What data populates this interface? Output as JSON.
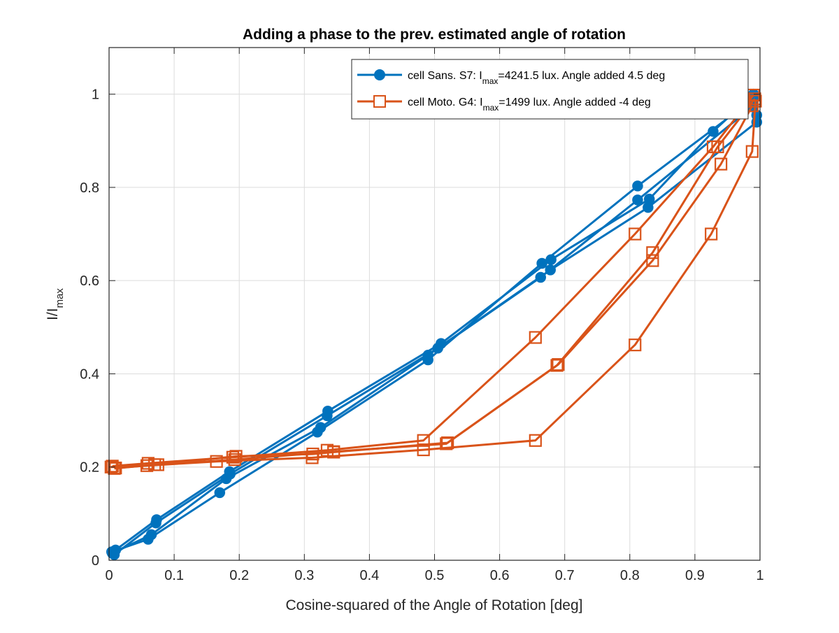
{
  "chart_data": {
    "type": "line",
    "title": "Adding a phase to the prev. estimated angle of rotation",
    "xlabel": "Cosine-squared of the Angle of Rotation [deg]",
    "ylabel": {
      "main": "I/I",
      "sub": "max"
    },
    "xlim": [
      0,
      1
    ],
    "ylim": [
      0,
      1.1
    ],
    "xticks": [
      0,
      0.1,
      0.2,
      0.3,
      0.4,
      0.5,
      0.6,
      0.7,
      0.8,
      0.9,
      1
    ],
    "xtick_labels": [
      "0",
      "0.1",
      "0.2",
      "0.3",
      "0.4",
      "0.5",
      "0.6",
      "0.7",
      "0.8",
      "0.9",
      "1"
    ],
    "yticks": [
      0,
      0.2,
      0.4,
      0.6,
      0.8,
      1
    ],
    "ytick_labels": [
      "0",
      "0.2",
      "0.4",
      "0.6",
      "0.8",
      "1"
    ],
    "grid": true,
    "legend_position": "top-right",
    "series": [
      {
        "legend": {
          "prefix": "cell Sans. S7: I",
          "sub": "max",
          "suffix": "=4241.5 lux. Angle added 4.5 deg"
        },
        "color": "#0072BD",
        "marker": "filled-circle",
        "traces": [
          [
            [
              0.005,
              0.015
            ],
            [
              0.065,
              0.055
            ],
            [
              0.18,
              0.175
            ],
            [
              0.325,
              0.285
            ],
            [
              0.49,
              0.44
            ],
            [
              0.663,
              0.607
            ],
            [
              0.812,
              0.773
            ],
            [
              0.99,
              0.975
            ],
            [
              0.995,
              0.955
            ]
          ],
          [
            [
              0.008,
              0.012
            ],
            [
              0.072,
              0.08
            ],
            [
              0.186,
              0.185
            ],
            [
              0.335,
              0.31
            ],
            [
              0.505,
              0.455
            ],
            [
              0.678,
              0.623
            ],
            [
              0.828,
              0.757
            ],
            [
              0.995,
              0.94
            ]
          ],
          [
            [
              0.004,
              0.018
            ],
            [
              0.06,
              0.045
            ],
            [
              0.17,
              0.145
            ],
            [
              0.32,
              0.275
            ],
            [
              0.49,
              0.43
            ],
            [
              0.665,
              0.637
            ],
            [
              0.812,
              0.803
            ],
            [
              0.99,
              0.99
            ]
          ],
          [
            [
              0.01,
              0.022
            ],
            [
              0.073,
              0.087
            ],
            [
              0.185,
              0.19
            ],
            [
              0.336,
              0.32
            ],
            [
              0.51,
              0.465
            ],
            [
              0.679,
              0.645
            ],
            [
              0.83,
              0.775
            ],
            [
              0.928,
              0.92
            ],
            [
              0.99,
              1.0
            ]
          ]
        ]
      },
      {
        "legend": {
          "prefix": "cell Moto. G4: I",
          "sub": "max",
          "suffix": "=1499 lux. Angle added -4 deg"
        },
        "color": "#D95319",
        "marker": "open-square",
        "traces": [
          [
            [
              0.003,
              0.2
            ],
            [
              0.058,
              0.203
            ],
            [
              0.165,
              0.212
            ],
            [
              0.312,
              0.22
            ],
            [
              0.483,
              0.237
            ],
            [
              0.655,
              0.257
            ],
            [
              0.808,
              0.462
            ],
            [
              0.925,
              0.7
            ],
            [
              0.988,
              0.877
            ],
            [
              0.993,
              0.985
            ]
          ],
          [
            [
              0.01,
              0.198
            ],
            [
              0.075,
              0.205
            ],
            [
              0.193,
              0.216
            ],
            [
              0.345,
              0.233
            ],
            [
              0.518,
              0.25
            ],
            [
              0.69,
              0.42
            ],
            [
              0.835,
              0.643
            ],
            [
              0.94,
              0.85
            ],
            [
              0.988,
              0.975
            ]
          ],
          [
            [
              0.005,
              0.202
            ],
            [
              0.06,
              0.208
            ],
            [
              0.19,
              0.221
            ],
            [
              0.335,
              0.236
            ],
            [
              0.483,
              0.257
            ],
            [
              0.655,
              0.478
            ],
            [
              0.808,
              0.7
            ],
            [
              0.928,
              0.887
            ],
            [
              0.99,
              0.998
            ]
          ],
          [
            [
              0.008,
              0.197
            ],
            [
              0.07,
              0.205
            ],
            [
              0.195,
              0.223
            ],
            [
              0.313,
              0.228
            ],
            [
              0.345,
              0.232
            ],
            [
              0.52,
              0.252
            ],
            [
              0.688,
              0.418
            ],
            [
              0.835,
              0.66
            ],
            [
              0.935,
              0.887
            ],
            [
              0.992,
              0.99
            ]
          ]
        ]
      }
    ]
  }
}
